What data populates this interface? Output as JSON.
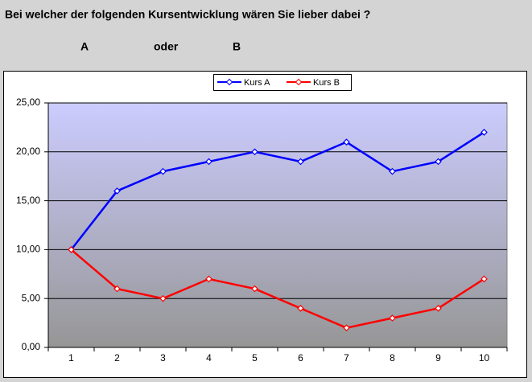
{
  "header": {
    "title": "Bei welcher der folgenden Kursentwicklung wären Sie lieber dabei ?",
    "option_a": "A",
    "connector": "oder",
    "option_b": "B"
  },
  "chart_data": {
    "type": "line",
    "categories": [
      1,
      2,
      3,
      4,
      5,
      6,
      7,
      8,
      9,
      10
    ],
    "series": [
      {
        "name": "Kurs A",
        "color": "#0000ff",
        "values": [
          10,
          16,
          18,
          19,
          20,
          19,
          21,
          18,
          19,
          22
        ]
      },
      {
        "name": "Kurs B",
        "color": "#ff0000",
        "values": [
          10,
          6,
          5,
          7,
          6,
          4,
          2,
          3,
          4,
          7
        ]
      }
    ],
    "ylim": [
      0,
      25
    ],
    "yticks": [
      {
        "value": 0,
        "label": "0,00"
      },
      {
        "value": 5,
        "label": "5,00"
      },
      {
        "value": 10,
        "label": "10,00"
      },
      {
        "value": 15,
        "label": "15,00"
      },
      {
        "value": 20,
        "label": "20,00"
      },
      {
        "value": 25,
        "label": "25,00"
      }
    ],
    "grid": true,
    "legend": "top"
  }
}
